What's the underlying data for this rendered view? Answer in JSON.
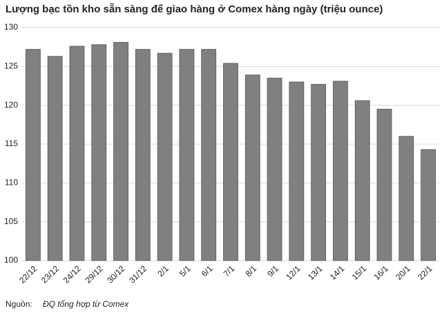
{
  "chart_data": {
    "type": "bar",
    "title": "Lượng bạc tồn kho sẵn sàng để giao hàng ở Comex hàng ngày (triệu ounce)",
    "categories": [
      "22/12",
      "23/12",
      "24/12",
      "29/12",
      "30/12",
      "31/12",
      "2/1",
      "5/1",
      "6/1",
      "7/1",
      "8/1",
      "9/1",
      "12/1",
      "13/1",
      "14/1",
      "15/1",
      "16/1",
      "20/1",
      "22/1"
    ],
    "values": [
      127.2,
      126.3,
      127.6,
      127.8,
      128.1,
      127.2,
      126.7,
      127.2,
      127.2,
      125.4,
      123.9,
      123.5,
      123.0,
      122.7,
      123.1,
      120.6,
      119.5,
      116.0,
      114.3
    ],
    "color": "#808080",
    "ylim": [
      100,
      130
    ],
    "yticks": [
      100,
      105,
      110,
      115,
      120,
      125,
      130
    ],
    "grid": true,
    "source_label": "Nguồn:",
    "source": "ĐQ tổng hợp từ Comex"
  }
}
